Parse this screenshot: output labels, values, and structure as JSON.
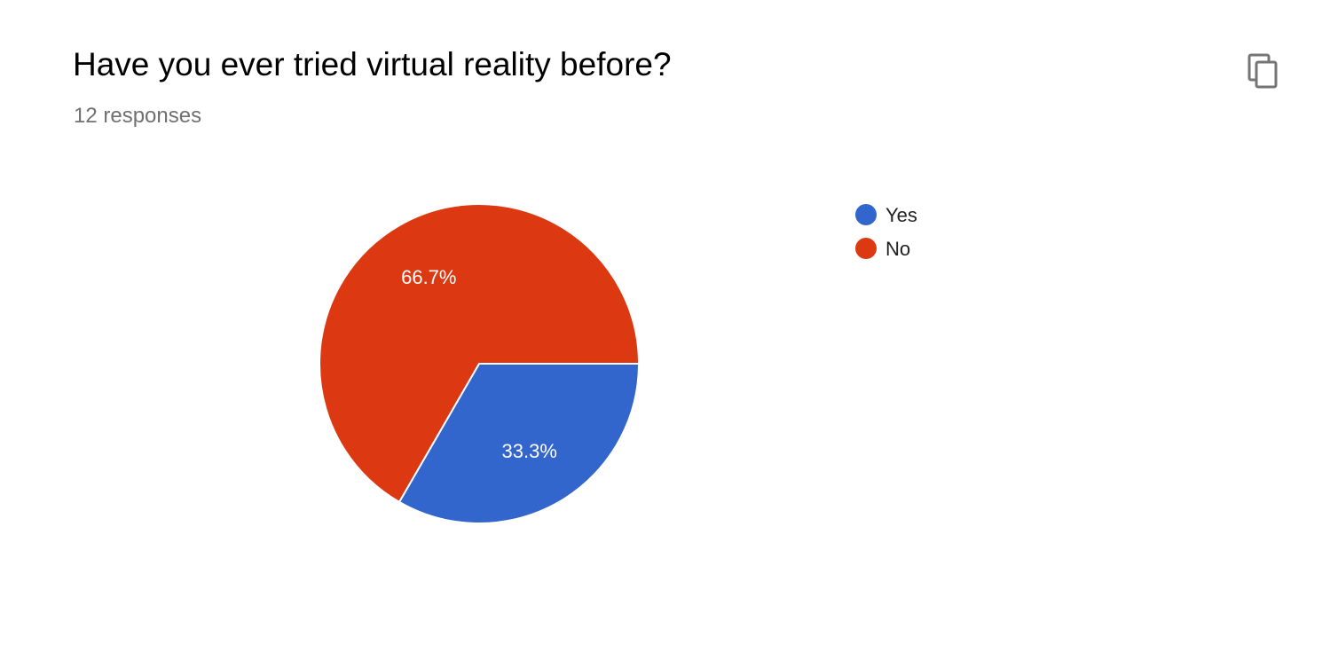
{
  "header": {
    "title": "Have you ever tried virtual reality before?",
    "responses": "12 responses",
    "copy_icon": "copy-icon"
  },
  "colors": {
    "yes": "#3366cc",
    "no": "#dc3912",
    "title": "#000000",
    "subtitle": "#707070",
    "icon": "#757575"
  },
  "chart_data": {
    "type": "pie",
    "title": "Have you ever tried virtual reality before?",
    "total_responses": 12,
    "legend_position": "right",
    "slices": [
      {
        "label": "Yes",
        "value": 4,
        "percent_label": "33.3%",
        "color": "#3366cc"
      },
      {
        "label": "No",
        "value": 8,
        "percent_label": "66.7%",
        "color": "#dc3912"
      }
    ]
  }
}
